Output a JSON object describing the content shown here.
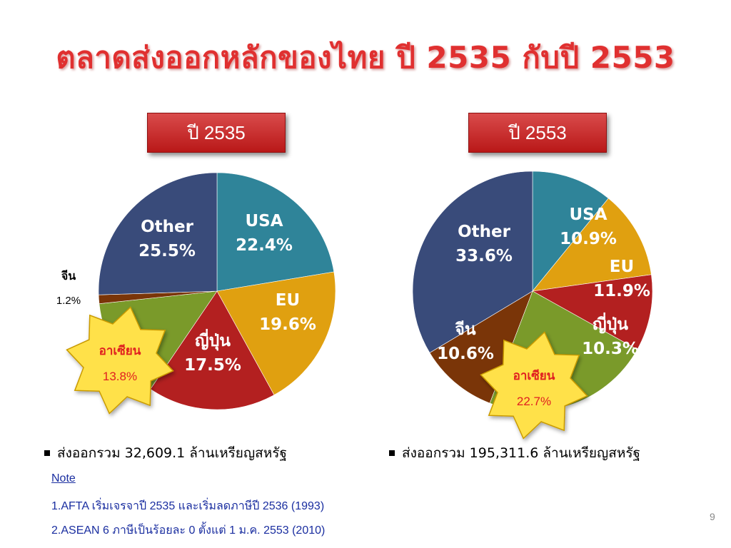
{
  "title": "ตลาดส่งออกหลักของไทย ปี 2535 กับปี 2553",
  "colors": {
    "title": "#e03030",
    "usa": "#2f8499",
    "eu": "#e0a010",
    "japan": "#b32020",
    "asean": "#7a9a2a",
    "china": "#7a3508",
    "other": "#394b7a",
    "star": "#ffe14a",
    "star_text": "#e02020"
  },
  "charts": [
    {
      "year_label": "ปี 2535",
      "total": "ส่งออกรวม 32,609.1 ล้านเหรียญสหรัฐ",
      "label_usa": [
        "USA",
        "22.4%"
      ],
      "label_eu": [
        "EU",
        "19.6%"
      ],
      "label_japan": [
        "ญี่ปุ่น",
        "17.5%"
      ],
      "label_other": [
        "Other",
        "25.5%"
      ],
      "label_china": [
        "จีน",
        "1.2%"
      ],
      "label_asean": [
        "อาเซียน",
        "13.8%"
      ]
    },
    {
      "year_label": "ปี 2553",
      "total": "ส่งออกรวม 195,311.6 ล้านเหรียญสหรัฐ",
      "label_usa": [
        "USA",
        "10.9%"
      ],
      "label_eu": [
        "EU",
        "11.9%"
      ],
      "label_japan": [
        "ญี่ปุ่น",
        "10.3%"
      ],
      "label_other": [
        "Other",
        "33.6%"
      ],
      "label_china": [
        "จีน",
        "10.6%"
      ],
      "label_asean": [
        "อาเซียน",
        "22.7%"
      ]
    }
  ],
  "notes": {
    "heading": "Note",
    "line1": "1.AFTA เริ่มเจรจาปี 2535 และเริ่มลดภาษีปี 2536 (1993)",
    "line2": "2.ASEAN 6 ภาษีเป็นร้อยละ 0 ตั้งแต่ 1 ม.ค. 2553 (2010)"
  },
  "page_number": "9",
  "chart_data": [
    {
      "type": "pie",
      "title": "ปี 2535",
      "categories": [
        "USA",
        "EU",
        "ญี่ปุ่น",
        "อาเซียน",
        "จีน",
        "Other"
      ],
      "values": [
        22.4,
        19.6,
        17.5,
        13.8,
        1.2,
        25.5
      ]
    },
    {
      "type": "pie",
      "title": "ปี 2553",
      "categories": [
        "USA",
        "EU",
        "ญี่ปุ่น",
        "อาเซียน",
        "จีน",
        "Other"
      ],
      "values": [
        10.9,
        11.9,
        10.3,
        22.7,
        10.6,
        33.6
      ]
    }
  ]
}
